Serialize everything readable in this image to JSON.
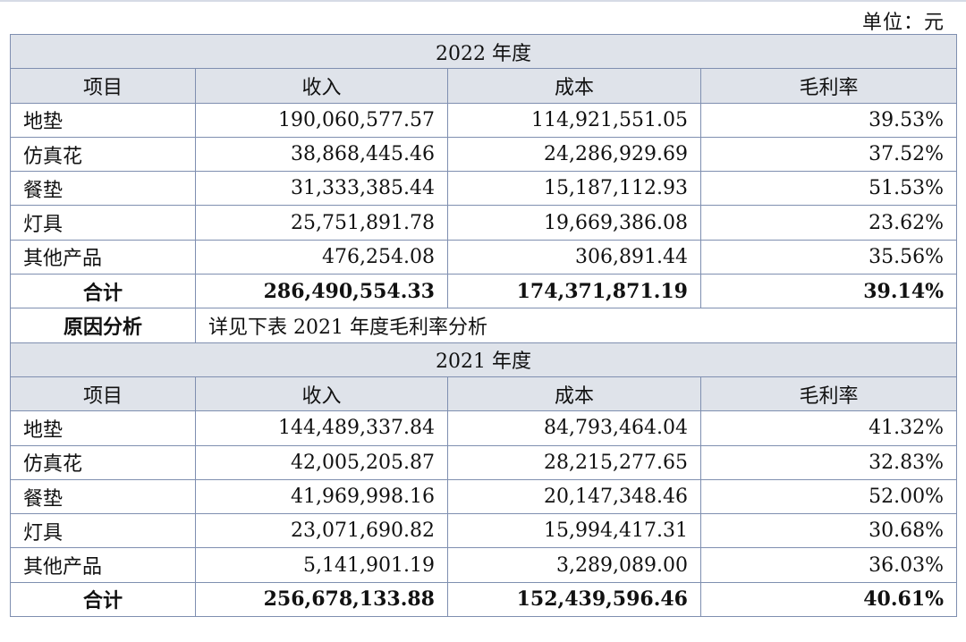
{
  "unit_label": "单位：元",
  "sections": [
    {
      "year_title": "2022 年度",
      "headers": [
        "项目",
        "收入",
        "成本",
        "毛利率"
      ],
      "rows": [
        {
          "item": "地垫",
          "revenue": "190,060,577.57",
          "cost": "114,921,551.05",
          "margin": "39.53%"
        },
        {
          "item": "仿真花",
          "revenue": "38,868,445.46",
          "cost": "24,286,929.69",
          "margin": "37.52%"
        },
        {
          "item": "餐垫",
          "revenue": "31,333,385.44",
          "cost": "15,187,112.93",
          "margin": "51.53%"
        },
        {
          "item": "灯具",
          "revenue": "25,751,891.78",
          "cost": "19,669,386.08",
          "margin": "23.62%"
        },
        {
          "item": "其他产品",
          "revenue": "476,254.08",
          "cost": "306,891.44",
          "margin": "35.56%"
        }
      ],
      "total": {
        "item": "合计",
        "revenue": "286,490,554.33",
        "cost": "174,371,871.19",
        "margin": "39.14%"
      },
      "reason": {
        "label": "原因分析",
        "text": "详见下表 2021 年度毛利率分析"
      }
    },
    {
      "year_title": "2021 年度",
      "headers": [
        "项目",
        "收入",
        "成本",
        "毛利率"
      ],
      "rows": [
        {
          "item": "地垫",
          "revenue": "144,489,337.84",
          "cost": "84,793,464.04",
          "margin": "41.32%"
        },
        {
          "item": "仿真花",
          "revenue": "42,005,205.87",
          "cost": "28,215,277.65",
          "margin": "32.83%"
        },
        {
          "item": "餐垫",
          "revenue": "41,969,998.16",
          "cost": "20,147,348.46",
          "margin": "52.00%"
        },
        {
          "item": "灯具",
          "revenue": "23,071,690.82",
          "cost": "15,994,417.31",
          "margin": "30.68%"
        },
        {
          "item": "其他产品",
          "revenue": "5,141,901.19",
          "cost": "3,289,089.00",
          "margin": "36.03%"
        }
      ],
      "total": {
        "item": "合计",
        "revenue": "256,678,133.88",
        "cost": "152,439,596.46",
        "margin": "40.61%"
      }
    }
  ]
}
